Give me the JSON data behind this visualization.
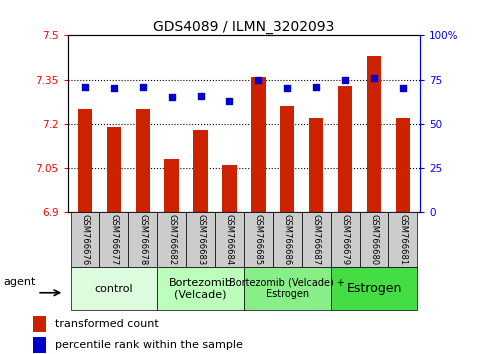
{
  "title": "GDS4089 / ILMN_3202093",
  "samples": [
    "GSM766676",
    "GSM766677",
    "GSM766678",
    "GSM766682",
    "GSM766683",
    "GSM766684",
    "GSM766685",
    "GSM766686",
    "GSM766687",
    "GSM766679",
    "GSM766680",
    "GSM766681"
  ],
  "bar_values": [
    7.25,
    7.19,
    7.25,
    7.08,
    7.18,
    7.06,
    7.36,
    7.26,
    7.22,
    7.33,
    7.43,
    7.22
  ],
  "dot_values": [
    71,
    70,
    71,
    65,
    66,
    63,
    75,
    70,
    71,
    75,
    76,
    70
  ],
  "bar_bottom": 6.9,
  "ylim_left": [
    6.9,
    7.5
  ],
  "ylim_right": [
    0,
    100
  ],
  "yticks_left": [
    6.9,
    7.05,
    7.2,
    7.35,
    7.5
  ],
  "yticks_right": [
    0,
    25,
    50,
    75,
    100
  ],
  "ytick_labels_left": [
    "6.9",
    "7.05",
    "7.2",
    "7.35",
    "7.5"
  ],
  "ytick_labels_right": [
    "0",
    "25",
    "50",
    "75",
    "100%"
  ],
  "hlines": [
    7.05,
    7.2,
    7.35
  ],
  "bar_color": "#cc2200",
  "dot_color": "#0000cc",
  "groups": [
    {
      "label": "control",
      "start": 0,
      "end": 3,
      "color": "#ddfcdd",
      "fontsize": 8
    },
    {
      "label": "Bortezomib\n(Velcade)",
      "start": 3,
      "end": 6,
      "color": "#bbffbb",
      "fontsize": 8
    },
    {
      "label": "Bortezomib (Velcade) +\nEstrogen",
      "start": 6,
      "end": 9,
      "color": "#88ee88",
      "fontsize": 7
    },
    {
      "label": "Estrogen",
      "start": 9,
      "end": 12,
      "color": "#44dd44",
      "fontsize": 9
    }
  ],
  "agent_label": "agent",
  "legend_bar_label": "transformed count",
  "legend_dot_label": "percentile rank within the sample",
  "tick_area_color": "#cccccc",
  "figsize": [
    4.83,
    3.54
  ],
  "dpi": 100
}
